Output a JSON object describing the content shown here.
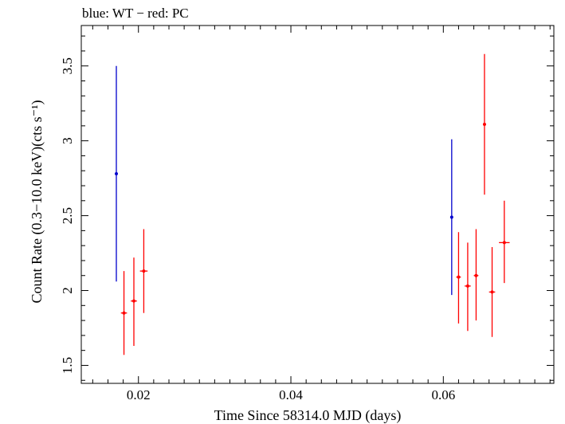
{
  "chart_data": {
    "type": "scatter",
    "title": "blue: WT − red: PC",
    "xlabel": "Time Since 58314.0 MJD (days)",
    "ylabel": "Count Rate (0.3−10.0 keV)(cts s⁻¹)",
    "xlim": [
      0.0125,
      0.0745
    ],
    "ylim": [
      1.38,
      3.77
    ],
    "x_ticks": [
      0.02,
      0.04,
      0.06
    ],
    "x_tick_labels": [
      "0.02",
      "0.04",
      "0.06"
    ],
    "y_ticks": [
      1.5,
      2,
      2.5,
      3,
      3.5
    ],
    "y_tick_labels": [
      "1.5",
      "2",
      "2.5",
      "3",
      "3.5"
    ],
    "grid": false,
    "series": [
      {
        "color": "#0000cc",
        "points": [
          {
            "x": 0.0171,
            "y": 2.78,
            "xerr": 0.0,
            "ylo": 2.06,
            "yhi": 3.5
          },
          {
            "x": 0.0611,
            "y": 2.49,
            "xerr": 0.0,
            "ylo": 1.97,
            "yhi": 3.01
          }
        ]
      },
      {
        "color": "#ff0000",
        "points": [
          {
            "x": 0.0181,
            "y": 1.85,
            "xerr": 0.0004,
            "ylo": 1.57,
            "yhi": 2.13
          },
          {
            "x": 0.0194,
            "y": 1.93,
            "xerr": 0.0004,
            "ylo": 1.63,
            "yhi": 2.22
          },
          {
            "x": 0.0207,
            "y": 2.13,
            "xerr": 0.0005,
            "ylo": 1.85,
            "yhi": 2.41
          },
          {
            "x": 0.062,
            "y": 2.09,
            "xerr": 0.0003,
            "ylo": 1.78,
            "yhi": 2.39
          },
          {
            "x": 0.0632,
            "y": 2.03,
            "xerr": 0.0004,
            "ylo": 1.73,
            "yhi": 2.32
          },
          {
            "x": 0.0643,
            "y": 2.1,
            "xerr": 0.0003,
            "ylo": 1.8,
            "yhi": 2.41
          },
          {
            "x": 0.0654,
            "y": 3.11,
            "xerr": 0.0002,
            "ylo": 2.64,
            "yhi": 3.58
          },
          {
            "x": 0.0664,
            "y": 1.99,
            "xerr": 0.0004,
            "ylo": 1.69,
            "yhi": 2.29
          },
          {
            "x": 0.068,
            "y": 2.32,
            "xerr": 0.0007,
            "ylo": 2.05,
            "yhi": 2.6
          }
        ]
      }
    ]
  }
}
